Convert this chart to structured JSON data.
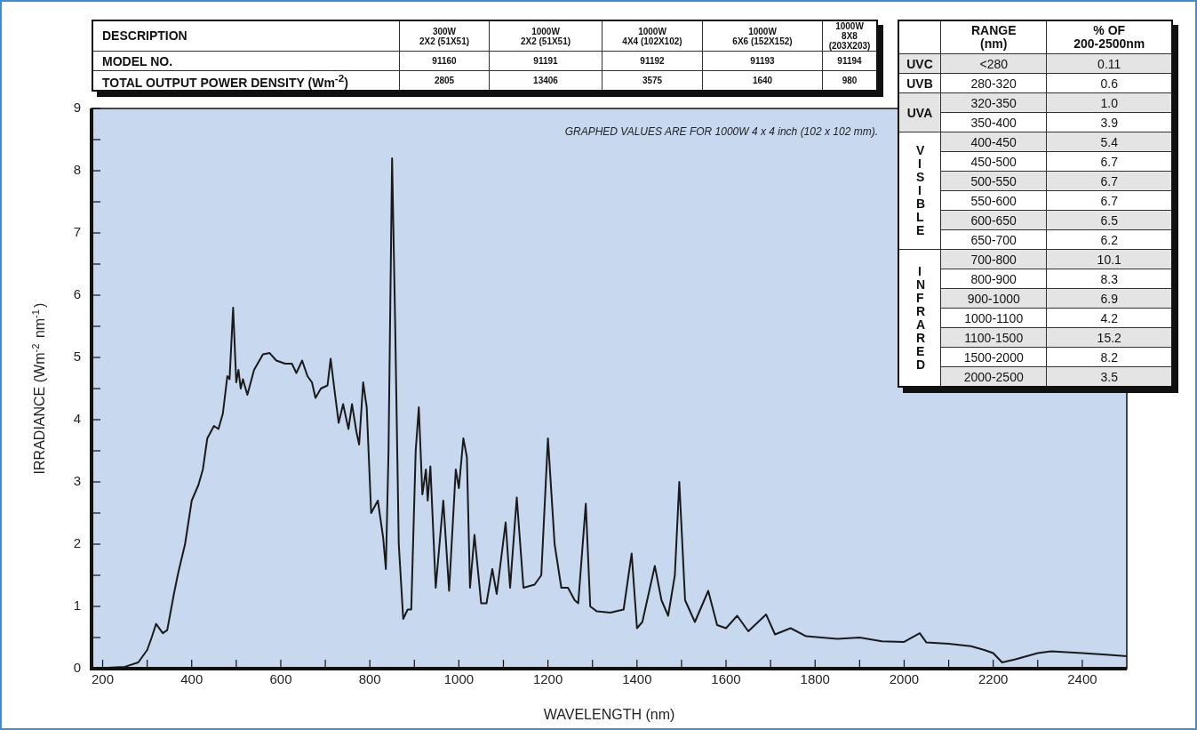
{
  "chart_data": [
    {
      "type": "line",
      "xlabel": "WAVELENGTH (nm)",
      "ylabel": "IRRADIANCE (Wm$^{-2}$ nm$^{-1}$)",
      "color": "#1a1a1a",
      "marker": "none",
      "annotations": [
        "GRAPHED VALUES ARE FOR 1000W 4 x 4 inch (102 x 102 mm)."
      ],
      "xlim": [
        175,
        2500
      ],
      "ylim": [
        0,
        9
      ],
      "xticks": [
        200,
        {
          "value": 300,
          "label": null
        },
        400,
        {
          "value": 500,
          "label": null
        },
        600,
        {
          "value": 700,
          "label": null
        },
        800,
        {
          "value": 900,
          "label": null
        },
        1000,
        {
          "value": 1100,
          "label": null
        },
        1200,
        {
          "value": 1300,
          "label": null
        },
        1400,
        {
          "value": 1500,
          "label": null
        },
        1600,
        {
          "value": 1700,
          "label": null
        },
        1800,
        {
          "value": 1900,
          "label": null
        },
        2000,
        {
          "value": 2100,
          "label": null
        },
        2200,
        {
          "value": 2300,
          "label": null
        },
        2400
      ],
      "yticks": [
        0,
        {
          "value": 0.5,
          "label": null
        },
        1,
        {
          "value": 1.5,
          "label": null
        },
        2,
        {
          "value": 2.5,
          "label": null
        },
        3,
        {
          "value": 3.5,
          "label": null
        },
        4,
        {
          "value": 4.5,
          "label": null
        },
        5,
        {
          "value": 5.5,
          "label": null
        },
        6,
        {
          "value": 6.5,
          "label": null
        },
        7,
        {
          "value": 7.5,
          "label": null
        },
        8,
        {
          "value": 8.5,
          "label": null
        },
        9
      ],
      "x": [
        200,
        250,
        280,
        300,
        310,
        320,
        335,
        345,
        360,
        370,
        385,
        400,
        415,
        425,
        435,
        450,
        460,
        470,
        480,
        485,
        493,
        500,
        505,
        510,
        515,
        525,
        540,
        560,
        575,
        590,
        610,
        625,
        635,
        648,
        660,
        670,
        678,
        690,
        705,
        712,
        722,
        730,
        740,
        752,
        760,
        770,
        776,
        785,
        793,
        803,
        818,
        830,
        836,
        842,
        850,
        857,
        865,
        875,
        885,
        893,
        903,
        910,
        918,
        926,
        930,
        936,
        948,
        965,
        978,
        993,
        1000,
        1010,
        1018,
        1025,
        1035,
        1050,
        1062,
        1075,
        1085,
        1105,
        1115,
        1130,
        1145,
        1170,
        1185,
        1200,
        1215,
        1230,
        1245,
        1260,
        1268,
        1285,
        1295,
        1310,
        1340,
        1370,
        1388,
        1400,
        1412,
        1440,
        1455,
        1470,
        1485,
        1495,
        1508,
        1530,
        1560,
        1580,
        1600,
        1625,
        1650,
        1690,
        1710,
        1745,
        1780,
        1850,
        1900,
        1950,
        2000,
        2035,
        2050,
        2100,
        2150,
        2180,
        2200,
        2220,
        2250,
        2300,
        2330,
        2400,
        2460,
        2500
      ],
      "values": [
        0.01,
        0.03,
        0.1,
        0.3,
        0.5,
        0.72,
        0.57,
        0.62,
        1.2,
        1.55,
        2.0,
        2.7,
        2.95,
        3.2,
        3.7,
        3.9,
        3.85,
        4.1,
        4.7,
        4.65,
        5.8,
        4.6,
        4.8,
        4.5,
        4.65,
        4.4,
        4.8,
        5.05,
        5.07,
        4.95,
        4.9,
        4.9,
        4.75,
        4.95,
        4.7,
        4.6,
        4.35,
        4.5,
        4.55,
        4.98,
        4.4,
        3.95,
        4.25,
        3.85,
        4.25,
        3.8,
        3.6,
        4.6,
        4.2,
        2.5,
        2.7,
        2.1,
        1.6,
        3.5,
        8.2,
        5.5,
        2.0,
        0.8,
        0.95,
        0.95,
        3.5,
        4.2,
        2.8,
        3.2,
        2.7,
        3.25,
        1.3,
        2.7,
        1.25,
        3.2,
        2.9,
        3.7,
        3.4,
        1.3,
        2.15,
        1.05,
        1.05,
        1.6,
        1.2,
        2.35,
        1.3,
        2.75,
        1.3,
        1.35,
        1.5,
        3.7,
        2.0,
        1.3,
        1.3,
        1.1,
        1.05,
        2.65,
        1.0,
        0.92,
        0.9,
        0.95,
        1.85,
        0.65,
        0.75,
        1.65,
        1.1,
        0.85,
        1.5,
        3.0,
        1.1,
        0.75,
        1.25,
        0.7,
        0.65,
        0.85,
        0.6,
        0.87,
        0.55,
        0.65,
        0.52,
        0.48,
        0.5,
        0.44,
        0.43,
        0.57,
        0.42,
        0.4,
        0.36,
        0.3,
        0.25,
        0.1,
        0.15,
        0.25,
        0.28,
        0.25,
        0.22,
        0.2
      ]
    },
    {
      "type": "other",
      "categories": [
        "DESCRIPTION",
        "300W\n2X2 (51X51)",
        "1000W\n2X2 (51X51)",
        "1000W\n4X4 (102X102)",
        "1000W\n6X6 (152X152)",
        "1000W\n8X8 (203X203)"
      ],
      "y_categories": [
        "MODEL NO.",
        "TOTAL OUTPUT POWER DENSITY   (Wm$^{-2}$)"
      ],
      "cell_labels": [
        [
          "91160",
          "91191",
          "91192",
          "91193",
          "91194"
        ],
        [
          "2805",
          "13406",
          "3575",
          "1640",
          "980"
        ]
      ]
    },
    {
      "type": "other",
      "categories": [
        "RANGE\n(nm)",
        "% OF\n200-2500nm"
      ],
      "y_categories": [
        "UVC",
        "UVB",
        "UVA",
        null,
        "VISIBLE",
        null,
        null,
        null,
        null,
        null,
        "INFRARED",
        null,
        null,
        null,
        null,
        null,
        null
      ],
      "cell_labels": [
        [
          "<280",
          "0.11"
        ],
        [
          "280-320",
          "0.6"
        ],
        [
          "320-350",
          "1.0"
        ],
        [
          "350-400",
          "3.9"
        ],
        [
          "400-450",
          "5.4"
        ],
        [
          "450-500",
          "6.7"
        ],
        [
          "500-550",
          "6.7"
        ],
        [
          "550-600",
          "6.7"
        ],
        [
          "600-650",
          "6.5"
        ],
        [
          "650-700",
          "6.2"
        ],
        [
          "700-800",
          "10.1"
        ],
        [
          "800-900",
          "8.3"
        ],
        [
          "900-1000",
          "6.9"
        ],
        [
          "1000-1100",
          "4.2"
        ],
        [
          "1100-1500",
          "15.2"
        ],
        [
          "1500-2000",
          "8.2"
        ],
        [
          "2000-2500",
          "3.5"
        ]
      ]
    }
  ]
}
